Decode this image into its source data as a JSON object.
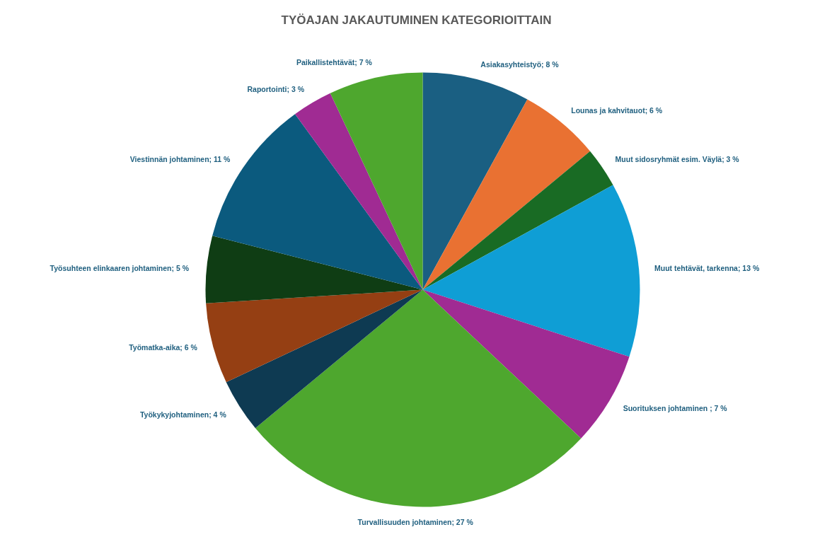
{
  "chart_data": {
    "type": "pie",
    "title": "TYÖAJAN JAKAUTUMINEN KATEGORIOITTAIN",
    "categories": [
      "Asiakasyhteistyö",
      "Lounas ja kahvitauot",
      "Muut sidosryhmät  esim. Väylä",
      "Muut tehtävät, tarkenna",
      "Suorituksen johtaminen ",
      "Turvallisuuden johtaminen",
      "Työkykyjohtaminen",
      "Työmatka-aika",
      "Työsuhteen elinkaaren  johtaminen",
      "Viestinnän johtaminen",
      "Raportointi",
      "Paikallistehtävät"
    ],
    "values": [
      8,
      6,
      3,
      13,
      7,
      27,
      4,
      6,
      5,
      11,
      3,
      7
    ],
    "value_labels": [
      "8 %",
      "6 %",
      "3 %",
      "13 %",
      "7 %",
      "27 %",
      "4 %",
      "6 %",
      "5 %",
      "11 %",
      "3 %",
      "7 %"
    ],
    "colors": [
      "#1a5f82",
      "#e97132",
      "#196b24",
      "#0f9ed5",
      "#a02b93",
      "#4ea72e",
      "#0e3a52",
      "#953f13",
      "#0f3d14",
      "#0b5a7e",
      "#a02b93",
      "#4ea72e"
    ]
  }
}
